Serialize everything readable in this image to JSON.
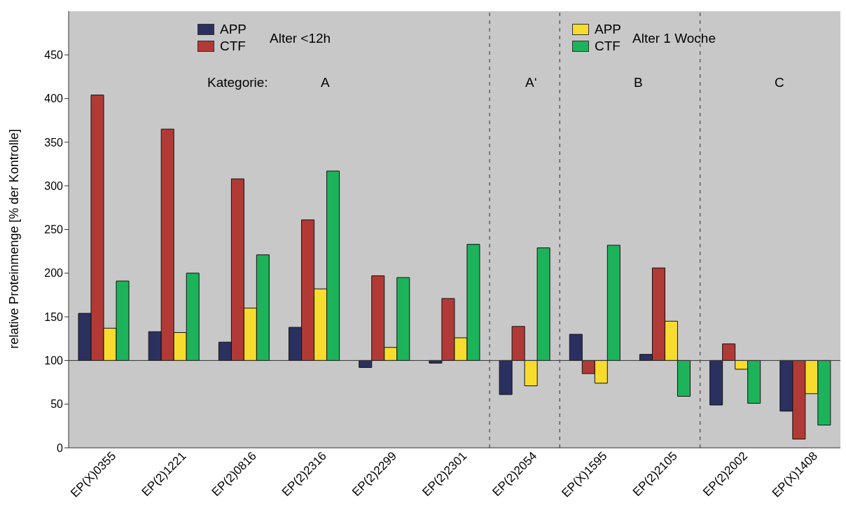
{
  "chart_data": {
    "type": "bar",
    "ylabel": "relative Proteinmenge [% der Kontrolle]",
    "categories": [
      "EP(X)0355",
      "EP(2)1221",
      "EP(2)0816",
      "EP(2)2316",
      "EP(2)2299",
      "EP(2)2301",
      "EP(2)2054",
      "EP(X)1595",
      "EP(2)2105",
      "EP(2)2002",
      "EP(X)1408"
    ],
    "series": [
      {
        "name": "APP",
        "color": "#2a3160",
        "base": [
          100,
          100,
          100,
          100,
          100,
          100,
          100,
          100,
          100,
          100,
          100
        ],
        "values": [
          54,
          33,
          21,
          38,
          -8,
          -3,
          -39,
          30,
          7,
          -51,
          -58
        ]
      },
      {
        "name": "CTF",
        "color": "#b23a36",
        "base": [
          100,
          100,
          100,
          100,
          100,
          100,
          100,
          100,
          100,
          100,
          100
        ],
        "values": [
          304,
          265,
          208,
          161,
          97,
          71,
          39,
          -15,
          106,
          19,
          -90
        ]
      },
      {
        "name": "APP",
        "color": "#f7dc2e",
        "base": [
          100,
          100,
          100,
          100,
          100,
          100,
          100,
          100,
          100,
          100,
          100
        ],
        "values": [
          37,
          32,
          60,
          82,
          15,
          26,
          -29,
          -26,
          45,
          -10,
          -38
        ]
      },
      {
        "name": "CTF",
        "color": "#1db35a",
        "base": [
          100,
          100,
          100,
          100,
          100,
          100,
          100,
          100,
          100,
          100,
          100
        ],
        "values": [
          91,
          100,
          121,
          217,
          95,
          133,
          129,
          132,
          -41,
          -49,
          -74
        ]
      }
    ],
    "ylim": [
      0,
      500
    ],
    "yticks": [
      0,
      50,
      100,
      150,
      200,
      250,
      300,
      350,
      400,
      450
    ],
    "ref_lines": [
      {
        "axis": "x",
        "value": "EP(2)2054",
        "line_style": "dashed"
      },
      {
        "axis": "x",
        "value": "EP(X)1595",
        "line_style": "dashed"
      },
      {
        "axis": "x",
        "value": "EP(2)2002",
        "line_style": "dashed"
      }
    ],
    "annotations": [
      "Alter <12h",
      "Alter 1 Woche",
      "Kategorie:",
      "A",
      "A‘",
      "B",
      "C"
    ],
    "legend": "top"
  }
}
